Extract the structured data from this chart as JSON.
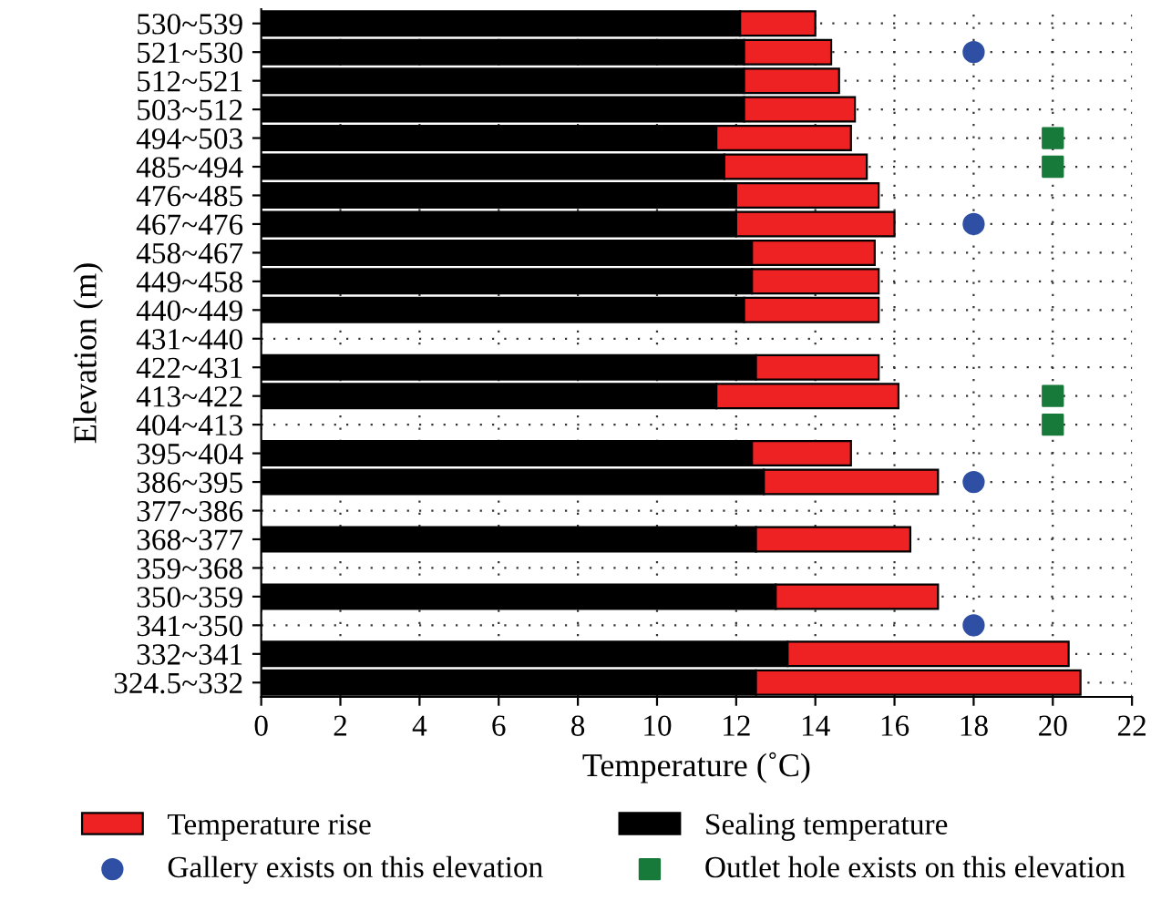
{
  "chart_data": {
    "type": "bar",
    "orientation": "horizontal",
    "stacked": true,
    "xlabel": "Temperature (˚C)",
    "ylabel": "Elevation (m)",
    "categories": [
      "530~539",
      "521~530",
      "512~521",
      "503~512",
      "494~503",
      "485~494",
      "476~485",
      "467~476",
      "458~467",
      "449~458",
      "440~449",
      "431~440",
      "422~431",
      "413~422",
      "404~413",
      "395~404",
      "386~395",
      "377~386",
      "368~377",
      "359~368",
      "350~359",
      "341~350",
      "332~341",
      "324.5~332"
    ],
    "series": [
      {
        "name": "Sealing temperature",
        "color": "#000000",
        "values": [
          12.1,
          12.2,
          12.2,
          12.2,
          11.5,
          11.7,
          12.0,
          12.0,
          12.4,
          12.4,
          12.2,
          null,
          12.5,
          11.5,
          null,
          12.4,
          12.7,
          null,
          12.5,
          null,
          13.0,
          null,
          13.3,
          12.5
        ]
      },
      {
        "name": "Temperature rise",
        "color": "#ee2222",
        "values": [
          1.9,
          2.2,
          2.4,
          2.8,
          3.4,
          3.6,
          3.6,
          4.0,
          3.1,
          3.2,
          3.4,
          null,
          3.1,
          4.6,
          null,
          2.5,
          4.4,
          null,
          3.9,
          null,
          4.1,
          null,
          7.1,
          8.2
        ]
      },
      {
        "name": "Gallery exists on this elevation",
        "type": "scatter",
        "marker": "circle",
        "color": "#2e4fa3",
        "values": [
          null,
          18,
          null,
          null,
          null,
          null,
          null,
          18,
          null,
          null,
          null,
          null,
          null,
          null,
          null,
          null,
          18,
          null,
          null,
          null,
          null,
          18,
          null,
          null
        ]
      },
      {
        "name": "Outlet hole exists on this elevation",
        "type": "scatter",
        "marker": "square",
        "color": "#177a3a",
        "values": [
          null,
          null,
          null,
          null,
          20,
          20,
          null,
          null,
          null,
          null,
          null,
          null,
          null,
          20,
          20,
          null,
          null,
          null,
          null,
          null,
          null,
          null,
          null,
          null
        ]
      }
    ],
    "xlim": [
      0,
      22
    ],
    "xticks": [
      0,
      2,
      4,
      6,
      8,
      10,
      12,
      14,
      16,
      18,
      20,
      22
    ],
    "grid": true,
    "legend": "bottom"
  }
}
